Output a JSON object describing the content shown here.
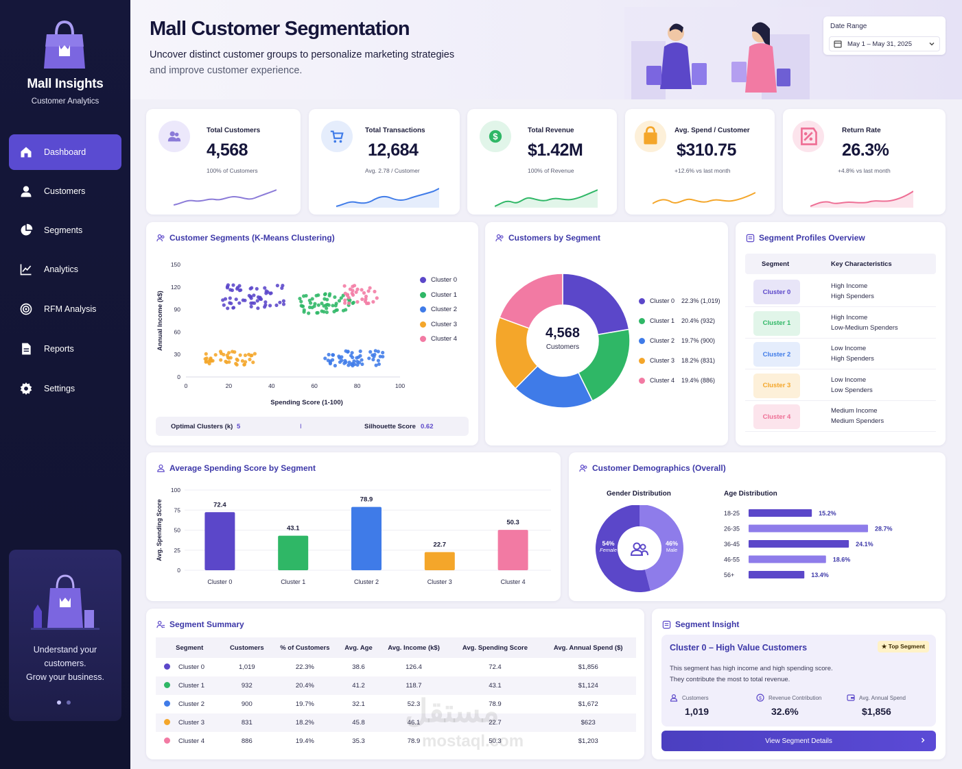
{
  "app": {
    "name": "Mall Insights",
    "subtitle": "Customer Analytics"
  },
  "sidebar": {
    "items": [
      {
        "label": "Dashboard",
        "icon": "home-icon",
        "active": true
      },
      {
        "label": "Customers",
        "icon": "user-icon"
      },
      {
        "label": "Segments",
        "icon": "pie-icon"
      },
      {
        "label": "Analytics",
        "icon": "line-chart-icon"
      },
      {
        "label": "RFM Analysis",
        "icon": "target-icon"
      },
      {
        "label": "Reports",
        "icon": "document-icon"
      },
      {
        "label": "Settings",
        "icon": "gear-icon"
      }
    ],
    "promo": {
      "line1": "Understand your",
      "line2": "customers.",
      "line3": "Grow your business."
    }
  },
  "header": {
    "title": "Mall Customer Segmentation",
    "subtitle_line1": "Uncover distinct customer groups to personalize marketing strategies",
    "subtitle_line2": "and improve customer experience.",
    "date_range": {
      "label": "Date Range",
      "value": "May 1 – May 31, 2025"
    }
  },
  "kpis": [
    {
      "label": "Total Customers",
      "value": "4,568",
      "note": "100% of Customers",
      "color": "#8b7bd8",
      "bg": "#ece8fb",
      "icon": "users-icon"
    },
    {
      "label": "Total Transactions",
      "value": "12,684",
      "note": "Avg. 2.78 / Customer",
      "color": "#3f7be8",
      "bg": "#e5edfc",
      "icon": "cart-icon"
    },
    {
      "label": "Total Revenue",
      "value": "$1.42M",
      "note": "100% of Revenue",
      "color": "#2fb766",
      "bg": "#e1f5e9",
      "icon": "dollar-icon"
    },
    {
      "label": "Avg. Spend / Customer",
      "value": "$310.75",
      "note": "+12.6% vs last month",
      "color": "#f4a62a",
      "bg": "#fdf0d9",
      "icon": "bag-icon"
    },
    {
      "label": "Return Rate",
      "value": "26.3%",
      "note": "+4.8% vs last month",
      "color": "#ee6f95",
      "bg": "#fce4ec",
      "icon": "percent-icon"
    }
  ],
  "clusters": [
    {
      "name": "Cluster 0",
      "color": "#5b47c9"
    },
    {
      "name": "Cluster 1",
      "color": "#2fb766"
    },
    {
      "name": "Cluster 2",
      "color": "#3f7be8"
    },
    {
      "name": "Cluster 3",
      "color": "#f4a62a"
    },
    {
      "name": "Cluster 4",
      "color": "#f27aa3"
    }
  ],
  "scatter": {
    "title": "Customer Segments (K-Means Clustering)",
    "stats": {
      "k_label": "Optimal Clusters (k)",
      "k_value": "5",
      "divider": "I",
      "sil_label": "Silhouette Score",
      "sil_value": "0.62"
    }
  },
  "donut": {
    "title": "Customers by Segment",
    "center_value": "4,568",
    "center_label": "Customers",
    "legend": [
      {
        "name": "Cluster 0",
        "value": "22.3% (1,019)"
      },
      {
        "name": "Cluster 1",
        "value": "20.4% (932)"
      },
      {
        "name": "Cluster 2",
        "value": "19.7% (900)"
      },
      {
        "name": "Cluster 3",
        "value": "18.2% (831)"
      },
      {
        "name": "Cluster 4",
        "value": "19.4% (886)"
      }
    ]
  },
  "profiles": {
    "title": "Segment Profiles Overview",
    "col_segment": "Segment",
    "col_key": "Key Characteristics",
    "rows": [
      {
        "segment": "Cluster 0",
        "l1": "High Income",
        "l2": "High Spenders",
        "bg": "#e8e5f8",
        "fg": "#5b47c9"
      },
      {
        "segment": "Cluster 1",
        "l1": "High Income",
        "l2": "Low-Medium Spenders",
        "bg": "#e1f5e9",
        "fg": "#2fb766"
      },
      {
        "segment": "Cluster 2",
        "l1": "Low Income",
        "l2": "High Spenders",
        "bg": "#e5edfc",
        "fg": "#3f7be8"
      },
      {
        "segment": "Cluster 3",
        "l1": "Low Income",
        "l2": "Low Spenders",
        "bg": "#fdf0d9",
        "fg": "#f4a62a"
      },
      {
        "segment": "Cluster 4",
        "l1": "Medium Income",
        "l2": "Medium Spenders",
        "bg": "#fce4ec",
        "fg": "#ee6f95"
      }
    ]
  },
  "demographics": {
    "title": "Customer Demographics (Overall)",
    "gender_title": "Gender Distribution",
    "female_pct": "54%",
    "female_label": "Female",
    "male_pct": "46%",
    "male_label": "Male",
    "age_title": "Age Distribution"
  },
  "summary": {
    "title": "Segment Summary",
    "headers": [
      "Segment",
      "Customers",
      "% of Customers",
      "Avg. Age",
      "Avg. Income (k$)",
      "Avg. Spending Score",
      "Avg. Annual Spend ($)"
    ],
    "rows": [
      [
        "Cluster 0",
        "1,019",
        "22.3%",
        "38.6",
        "126.4",
        "72.4",
        "$1,856"
      ],
      [
        "Cluster 1",
        "932",
        "20.4%",
        "41.2",
        "118.7",
        "43.1",
        "$1,124"
      ],
      [
        "Cluster 2",
        "900",
        "19.7%",
        "32.1",
        "52.3",
        "78.9",
        "$1,672"
      ],
      [
        "Cluster 3",
        "831",
        "18.2%",
        "45.8",
        "46.1",
        "22.7",
        "$623"
      ],
      [
        "Cluster 4",
        "886",
        "19.4%",
        "35.3",
        "78.9",
        "50.3",
        "$1,203"
      ]
    ]
  },
  "insight": {
    "title": "Segment Insight",
    "heading": "Cluster 0 – High Value Customers",
    "badge": "Top Segment",
    "text1": "This segment has high income and high spending score.",
    "text2": "They contribute the most to total revenue.",
    "stats": [
      {
        "label": "Customers",
        "value": "1,019"
      },
      {
        "label": "Revenue Contribution",
        "value": "32.6%"
      },
      {
        "label": "Avg. Annual Spend",
        "value": "$1,856"
      }
    ],
    "button": "View Segment Details"
  },
  "watermark": {
    "text1": "مستقل",
    "text2": "mostaql.com"
  },
  "chart_data": [
    {
      "type": "scatter",
      "title": "Customer Segments (K-Means Clustering)",
      "xlabel": "Spending Score (1-100)",
      "ylabel": "Annual Income (k$)",
      "xlim": [
        0,
        100
      ],
      "ylim": [
        0,
        150
      ],
      "xticks": [
        0,
        20,
        40,
        60,
        80,
        100
      ],
      "yticks": [
        0,
        30,
        60,
        90,
        120,
        150
      ],
      "legend": "right",
      "series": [
        {
          "name": "Cluster 0",
          "center": [
            32,
            107
          ],
          "spread": [
            15,
            16
          ],
          "count": 60
        },
        {
          "name": "Cluster 1",
          "center": [
            66,
            98
          ],
          "spread": [
            13,
            13
          ],
          "count": 55
        },
        {
          "name": "Cluster 2",
          "center": [
            79,
            25
          ],
          "spread": [
            14,
            10
          ],
          "count": 55
        },
        {
          "name": "Cluster 3",
          "center": [
            21,
            25
          ],
          "spread": [
            12,
            10
          ],
          "count": 45
        },
        {
          "name": "Cluster 4",
          "center": [
            82,
            110
          ],
          "spread": [
            8,
            12
          ],
          "count": 30
        }
      ]
    },
    {
      "type": "pie",
      "title": "Customers by Segment",
      "categories": [
        "Cluster 0",
        "Cluster 1",
        "Cluster 2",
        "Cluster 3",
        "Cluster 4"
      ],
      "values": [
        22.3,
        20.4,
        19.7,
        18.2,
        19.4
      ]
    },
    {
      "type": "bar",
      "title": "Average Spending Score by Segment",
      "ylabel": "Avg. Spending Score",
      "categories": [
        "Cluster 0",
        "Cluster 1",
        "Cluster 2",
        "Cluster 3",
        "Cluster 4"
      ],
      "values": [
        72.4,
        43.1,
        78.9,
        22.7,
        50.3
      ],
      "ylim": [
        0,
        100
      ],
      "yticks": [
        0,
        25,
        50,
        75,
        100
      ]
    },
    {
      "type": "pie",
      "title": "Gender Distribution",
      "categories": [
        "Female",
        "Male"
      ],
      "values": [
        54,
        46
      ]
    },
    {
      "type": "bar",
      "title": "Age Distribution",
      "orientation": "horizontal",
      "categories": [
        "18-25",
        "26-35",
        "36-45",
        "46-55",
        "56+"
      ],
      "values": [
        15.2,
        28.7,
        24.1,
        18.6,
        13.4
      ],
      "labels": [
        "15.2%",
        "28.7%",
        "24.1%",
        "18.6%",
        "13.4%"
      ]
    }
  ]
}
